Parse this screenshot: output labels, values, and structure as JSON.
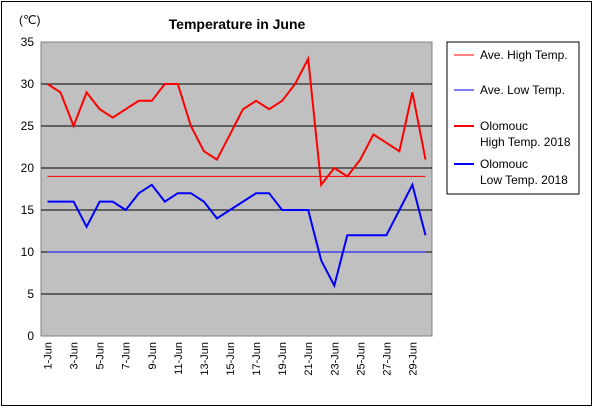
{
  "chart_data": {
    "type": "line",
    "title": "Temperature in June",
    "unit_label": "(℃)",
    "xlabel": "",
    "ylabel": "",
    "ylim": [
      0,
      35
    ],
    "yticks": [
      0,
      5,
      10,
      15,
      20,
      25,
      30,
      35
    ],
    "grid": true,
    "legend_position": "right",
    "x": [
      "1-Jun",
      "2-Jun",
      "3-Jun",
      "4-Jun",
      "5-Jun",
      "6-Jun",
      "7-Jun",
      "8-Jun",
      "9-Jun",
      "10-Jun",
      "11-Jun",
      "12-Jun",
      "13-Jun",
      "14-Jun",
      "15-Jun",
      "16-Jun",
      "17-Jun",
      "18-Jun",
      "19-Jun",
      "20-Jun",
      "21-Jun",
      "22-Jun",
      "23-Jun",
      "24-Jun",
      "25-Jun",
      "26-Jun",
      "27-Jun",
      "28-Jun",
      "29-Jun",
      "30-Jun"
    ],
    "xtick_labels": [
      "1-Jun",
      "3-Jun",
      "5-Jun",
      "7-Jun",
      "9-Jun",
      "11-Jun",
      "13-Jun",
      "15-Jun",
      "17-Jun",
      "19-Jun",
      "21-Jun",
      "23-Jun",
      "25-Jun",
      "27-Jun",
      "29-Jun"
    ],
    "series": [
      {
        "name": "Ave. High Temp.",
        "color": "#ff0000",
        "width": 1,
        "values": [
          19,
          19,
          19,
          19,
          19,
          19,
          19,
          19,
          19,
          19,
          19,
          19,
          19,
          19,
          19,
          19,
          19,
          19,
          19,
          19,
          19,
          19,
          19,
          19,
          19,
          19,
          19,
          19,
          19,
          19
        ]
      },
      {
        "name": "Ave. Low Temp.",
        "color": "#0000ff",
        "width": 1,
        "values": [
          10,
          10,
          10,
          10,
          10,
          10,
          10,
          10,
          10,
          10,
          10,
          10,
          10,
          10,
          10,
          10,
          10,
          10,
          10,
          10,
          10,
          10,
          10,
          10,
          10,
          10,
          10,
          10,
          10,
          10
        ]
      },
      {
        "name": "Olomouc High Temp. 2018",
        "legend_lines": [
          "Olomouc",
          "High Temp. 2018"
        ],
        "color": "#ff0000",
        "width": 2,
        "values": [
          30,
          29,
          25,
          29,
          27,
          26,
          27,
          28,
          28,
          30,
          30,
          25,
          22,
          21,
          24,
          27,
          28,
          27,
          28,
          30,
          33,
          18,
          20,
          19,
          21,
          24,
          23,
          22,
          29,
          21
        ]
      },
      {
        "name": "Olomouc Low Temp. 2018",
        "legend_lines": [
          "Olomouc",
          "Low Temp. 2018"
        ],
        "color": "#0000ff",
        "width": 2,
        "values": [
          16,
          16,
          16,
          13,
          16,
          16,
          15,
          17,
          18,
          16,
          17,
          17,
          16,
          14,
          15,
          16,
          17,
          17,
          15,
          15,
          15,
          9,
          6,
          12,
          12,
          12,
          12,
          15,
          18,
          12
        ]
      }
    ]
  }
}
